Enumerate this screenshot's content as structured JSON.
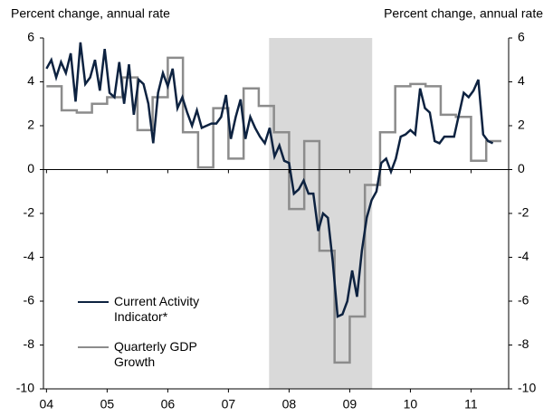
{
  "chart_data": {
    "type": "line",
    "y_label": "Percent change, annual rate",
    "y2_label": "Percent change, annual rate",
    "xlim": [
      2003.95,
      2011.62
    ],
    "xticks": [
      {
        "value": 2004,
        "label": "04"
      },
      {
        "value": 2005,
        "label": "05"
      },
      {
        "value": 2006,
        "label": "06"
      },
      {
        "value": 2007,
        "label": "07"
      },
      {
        "value": 2008,
        "label": "08"
      },
      {
        "value": 2009,
        "label": "09"
      },
      {
        "value": 2010,
        "label": "10"
      },
      {
        "value": 2011,
        "label": "11"
      }
    ],
    "ylim": [
      -10,
      6
    ],
    "yticks": [
      -10,
      -8,
      -6,
      -4,
      -2,
      0,
      2,
      4,
      6
    ],
    "y2lim": [
      -10,
      6
    ],
    "y2ticks": [
      -10,
      -8,
      -6,
      -4,
      -2,
      0,
      2,
      4,
      6
    ],
    "shaded_region": {
      "x": [
        2007.67,
        2009.37
      ],
      "color": "#d9d9d9"
    },
    "series": [
      {
        "name": "Current Activity Indicator*",
        "color": "#0d2240",
        "step": false,
        "x0": 2004.0,
        "dx": 0.08,
        "values": [
          4.6,
          5.0,
          4.2,
          4.9,
          4.4,
          5.3,
          3.1,
          5.8,
          3.9,
          4.2,
          5.0,
          3.6,
          5.5,
          3.5,
          3.3,
          4.9,
          3.0,
          4.8,
          2.5,
          4.1,
          3.9,
          3.0,
          1.2,
          3.5,
          4.4,
          3.8,
          4.6,
          2.8,
          3.3,
          2.6,
          2.0,
          2.7,
          1.9,
          2.0,
          2.1,
          2.1,
          2.4,
          3.4,
          1.4,
          2.4,
          3.2,
          1.4,
          2.4,
          1.9,
          1.5,
          1.2,
          1.9,
          0.6,
          1.1,
          0.4,
          0.3,
          -1.1,
          -0.9,
          -0.5,
          -1.1,
          -1.1,
          -2.8,
          -2.0,
          -2.2,
          -4.2,
          -6.7,
          -6.6,
          -6.0,
          -4.6,
          -5.8,
          -3.7,
          -2.2,
          -1.4,
          -1.0,
          0.3,
          0.5,
          -0.1,
          0.5,
          1.5,
          1.6,
          1.8,
          1.6,
          3.7,
          2.8,
          2.6,
          1.3,
          1.2,
          1.5,
          1.5,
          1.5,
          2.5,
          3.5,
          3.3,
          3.6,
          4.1,
          1.6,
          1.3,
          1.2
        ]
      },
      {
        "name": "Quarterly GDP Growth",
        "color": "#8c8c8c",
        "step": true,
        "x0": 2004.0,
        "dx": 0.25,
        "values": [
          3.8,
          2.7,
          2.6,
          3.0,
          3.3,
          4.2,
          1.8,
          3.3,
          5.1,
          1.7,
          0.1,
          2.8,
          0.5,
          3.7,
          2.9,
          1.7,
          -1.8,
          1.3,
          -3.7,
          -8.8,
          -6.7,
          -0.7,
          1.7,
          3.8,
          3.9,
          3.8,
          2.5,
          2.4,
          0.4,
          1.3
        ]
      }
    ]
  }
}
